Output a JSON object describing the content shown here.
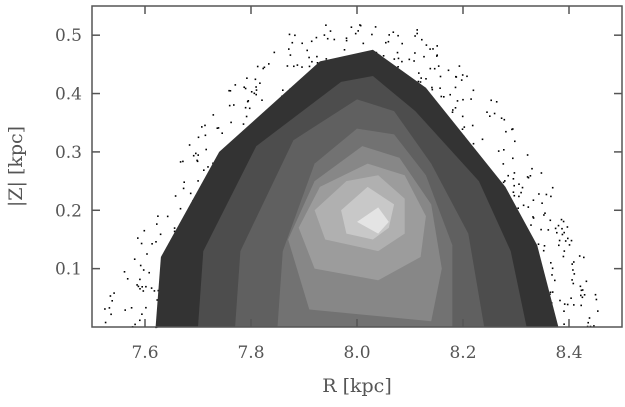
{
  "chart_data": {
    "type": "contour",
    "title": "",
    "xlabel": "R [kpc]",
    "ylabel": "|Z| [kpc]",
    "xlim": [
      7.5,
      8.5
    ],
    "ylim": [
      0.0,
      0.55
    ],
    "xticks": [
      "7.6",
      "7.8",
      "8.0",
      "8.2",
      "8.4"
    ],
    "yticks": [
      "0.1",
      "0.2",
      "0.3",
      "0.4",
      "0.5"
    ],
    "grid": false,
    "legend": "none",
    "fill_colors": [
      "#333333",
      "#4d4d4d",
      "#606060",
      "#727272",
      "#878787",
      "#9c9c9c",
      "#b0b0b0",
      "#c8c8c8",
      "#e4e4e4"
    ],
    "scatter_color": "#000000",
    "contour_levels": [
      [
        [
          7.62,
          0.0
        ],
        [
          7.63,
          0.12
        ],
        [
          7.74,
          0.3
        ],
        [
          7.93,
          0.455
        ],
        [
          8.03,
          0.475
        ],
        [
          8.13,
          0.41
        ],
        [
          8.28,
          0.24
        ],
        [
          8.34,
          0.14
        ],
        [
          8.38,
          0.0
        ]
      ],
      [
        [
          7.7,
          0.0
        ],
        [
          7.71,
          0.13
        ],
        [
          7.81,
          0.31
        ],
        [
          7.97,
          0.42
        ],
        [
          8.03,
          0.43
        ],
        [
          8.11,
          0.37
        ],
        [
          8.23,
          0.25
        ],
        [
          8.29,
          0.13
        ],
        [
          8.32,
          0.0
        ]
      ],
      [
        [
          7.77,
          0.0
        ],
        [
          7.78,
          0.13
        ],
        [
          7.88,
          0.32
        ],
        [
          8.0,
          0.39
        ],
        [
          8.07,
          0.37
        ],
        [
          8.14,
          0.28
        ],
        [
          8.21,
          0.16
        ],
        [
          8.24,
          0.0
        ]
      ],
      [
        [
          7.85,
          0.0
        ],
        [
          7.86,
          0.13
        ],
        [
          7.92,
          0.28
        ],
        [
          8.0,
          0.34
        ],
        [
          8.07,
          0.33
        ],
        [
          8.13,
          0.26
        ],
        [
          8.18,
          0.14
        ],
        [
          8.18,
          0.0
        ]
      ],
      [
        [
          7.91,
          0.03
        ],
        [
          7.87,
          0.15
        ],
        [
          7.92,
          0.25
        ],
        [
          8.01,
          0.31
        ],
        [
          8.08,
          0.29
        ],
        [
          8.14,
          0.21
        ],
        [
          8.16,
          0.1
        ],
        [
          8.14,
          0.01
        ]
      ],
      [
        [
          7.92,
          0.1
        ],
        [
          7.89,
          0.17
        ],
        [
          7.93,
          0.24
        ],
        [
          8.02,
          0.28
        ],
        [
          8.09,
          0.26
        ],
        [
          8.13,
          0.19
        ],
        [
          8.12,
          0.12
        ],
        [
          8.04,
          0.08
        ]
      ],
      [
        [
          7.94,
          0.15
        ],
        [
          7.92,
          0.2
        ],
        [
          7.98,
          0.25
        ],
        [
          8.04,
          0.26
        ],
        [
          8.09,
          0.22
        ],
        [
          8.09,
          0.16
        ],
        [
          8.04,
          0.13
        ]
      ],
      [
        [
          7.98,
          0.16
        ],
        [
          7.97,
          0.2
        ],
        [
          8.02,
          0.24
        ],
        [
          8.07,
          0.21
        ],
        [
          8.06,
          0.17
        ],
        [
          8.03,
          0.15
        ]
      ],
      [
        [
          8.0,
          0.18
        ],
        [
          8.04,
          0.205
        ],
        [
          8.06,
          0.18
        ],
        [
          8.04,
          0.16
        ]
      ]
    ]
  }
}
